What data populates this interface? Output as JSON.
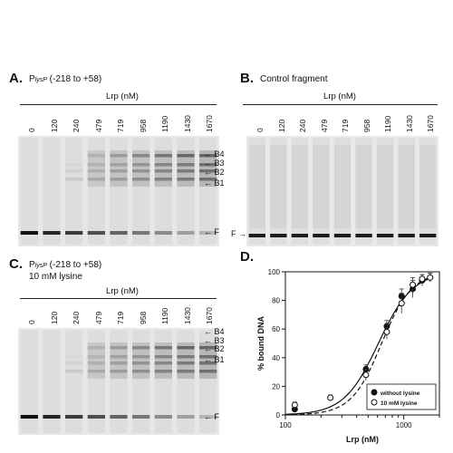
{
  "panels": {
    "A": {
      "letter": "A.",
      "title_prefix": "P",
      "title_sub": "lysP",
      "title_suffix": " (-218 to +58)",
      "axis_label": "Lrp (nM)",
      "lanes": [
        "0",
        "120",
        "240",
        "479",
        "719",
        "958",
        "1190",
        "1430",
        "1670"
      ],
      "bands": [
        "B4",
        "B3",
        "B2",
        "B1",
        "F"
      ]
    },
    "B": {
      "letter": "B.",
      "title": "Control fragment",
      "axis_label": "Lrp (nM)",
      "lanes": [
        "0",
        "120",
        "240",
        "479",
        "719",
        "958",
        "1190",
        "1430",
        "1670"
      ]
    },
    "C": {
      "letter": "C.",
      "title_prefix": "P",
      "title_sub": "lysP",
      "title_suffix": " (-218 to +58)",
      "title_line2": "10 mM lysine",
      "axis_label": "Lrp (nM)",
      "lanes": [
        "0",
        "120",
        "240",
        "479",
        "719",
        "958",
        "1190",
        "1430",
        "1670"
      ],
      "bands": [
        "B4",
        "B3",
        "B2",
        "B1",
        "F"
      ]
    },
    "D": {
      "letter": "D."
    }
  },
  "chart_data": {
    "type": "scatter",
    "xlabel": "Lrp (nM)",
    "ylabel": "% bound DNA",
    "xscale": "log",
    "xlim": [
      100,
      2000
    ],
    "ylim": [
      0,
      100
    ],
    "x_ticks": [
      "100",
      "1000"
    ],
    "y_ticks": [
      "0",
      "20",
      "40",
      "60",
      "80",
      "100"
    ],
    "legend_position": "bottom-right",
    "series": [
      {
        "name": "without lysine",
        "marker": "filled-circle",
        "fit_line": "solid",
        "x": [
          120,
          479,
          719,
          958,
          1190,
          1430,
          1670
        ],
        "y": [
          4,
          32,
          62,
          83,
          88,
          94,
          96
        ],
        "err": [
          2,
          3,
          4,
          5,
          6,
          4,
          3
        ]
      },
      {
        "name": "10 mM lysine",
        "marker": "open-circle",
        "fit_line": "dashed",
        "x": [
          120,
          240,
          479,
          719,
          958,
          1190,
          1430,
          1670
        ],
        "y": [
          7,
          12,
          28,
          58,
          78,
          91,
          95,
          96
        ],
        "err": [
          2,
          2,
          4,
          5,
          7,
          5,
          3,
          3
        ]
      }
    ]
  }
}
